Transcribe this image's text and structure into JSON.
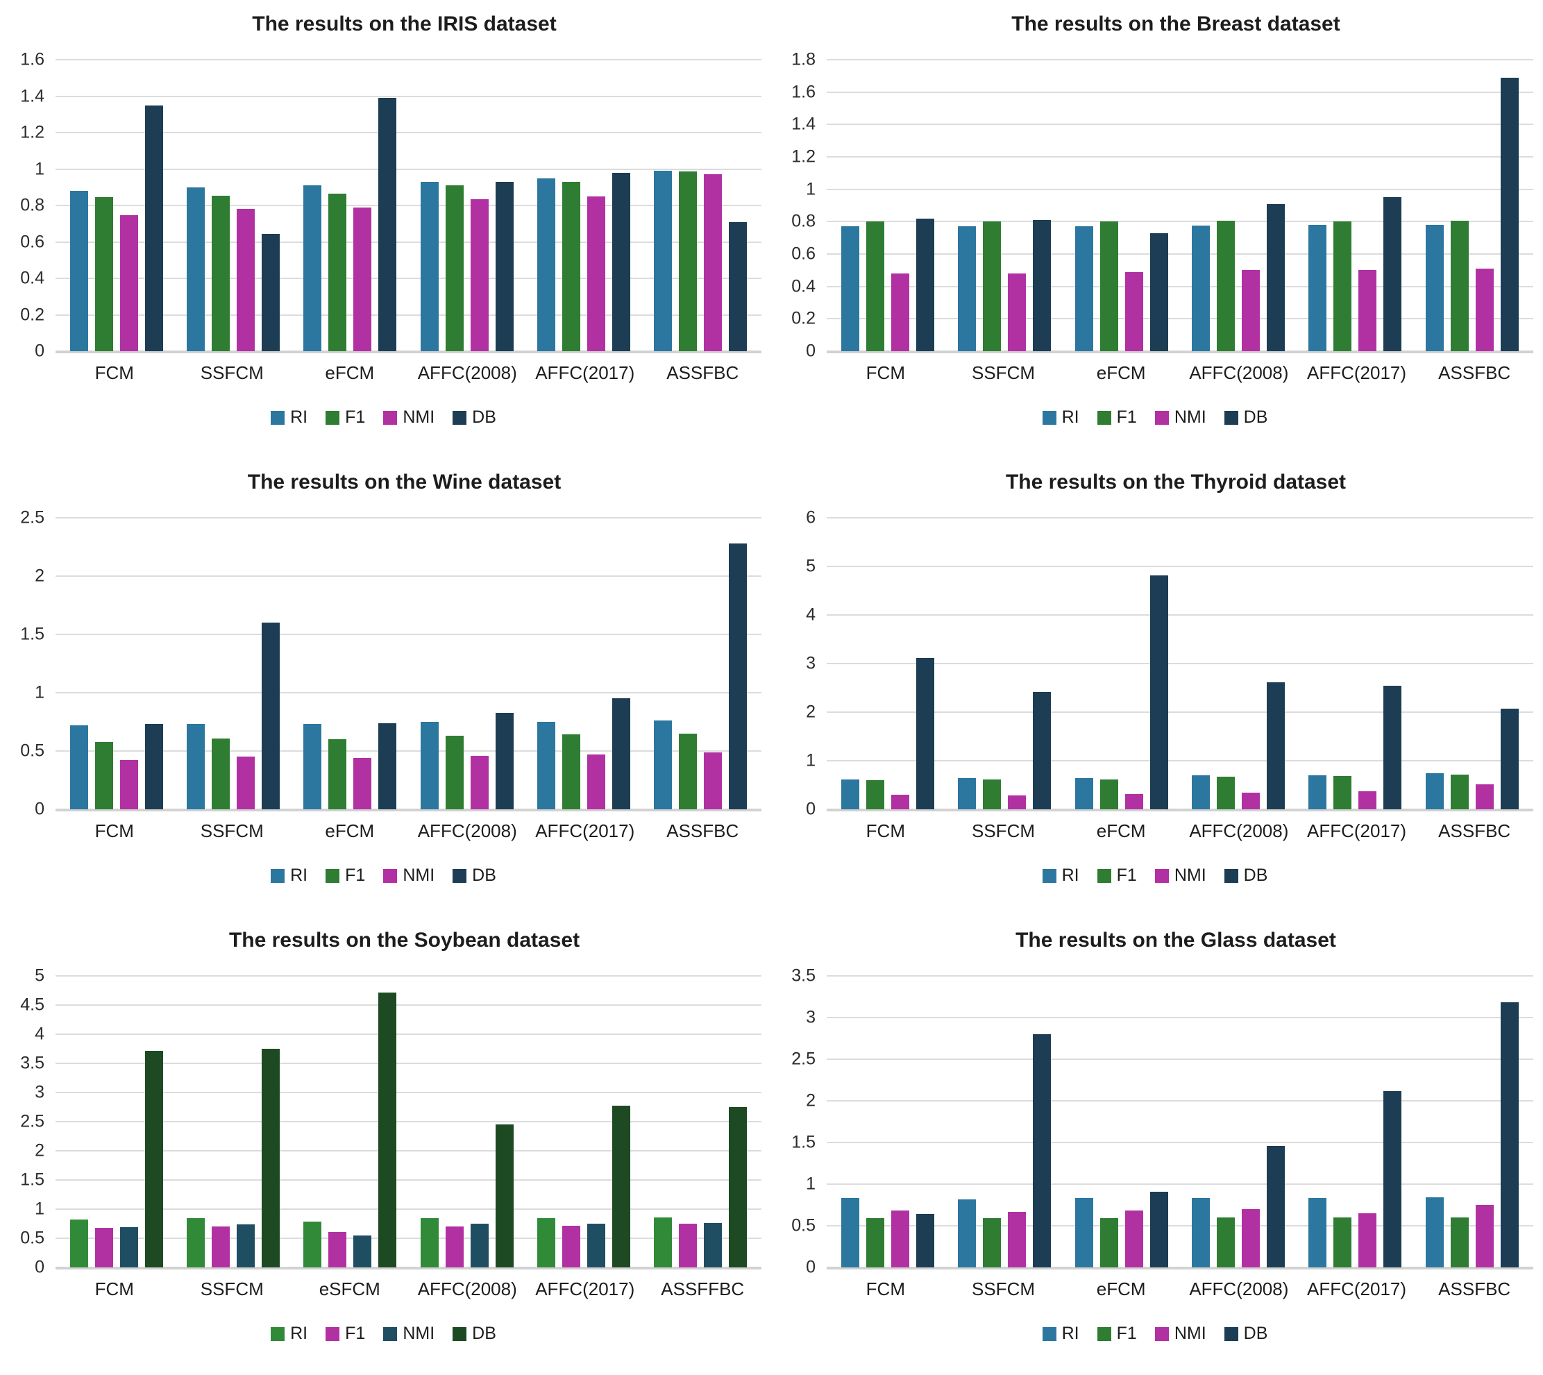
{
  "chart_data": [
    {
      "type": "bar",
      "title": "The results on the IRIS dataset",
      "categories": [
        "FCM",
        "SSFCM",
        "eFCM",
        "AFFC(2008)",
        "AFFC(2017)",
        "ASSFBC"
      ],
      "series": [
        {
          "name": "RI",
          "color": "#2B77A0",
          "values": [
            0.88,
            0.9,
            0.91,
            0.93,
            0.95,
            0.99
          ]
        },
        {
          "name": "F1",
          "color": "#2E7D32",
          "values": [
            0.845,
            0.855,
            0.865,
            0.91,
            0.93,
            0.985
          ]
        },
        {
          "name": "NMI",
          "color": "#B231A2",
          "values": [
            0.745,
            0.78,
            0.79,
            0.835,
            0.85,
            0.97
          ]
        },
        {
          "name": "DB",
          "color": "#1C3D54",
          "values": [
            1.35,
            0.645,
            1.39,
            0.93,
            0.98,
            0.71
          ]
        }
      ],
      "ylim": [
        0,
        1.6
      ],
      "yticks": [
        "0",
        "0.2",
        "0.4",
        "0.6",
        "0.8",
        "1",
        "1.2",
        "1.4",
        "1.6"
      ],
      "grid": true,
      "legend_position": "bottom"
    },
    {
      "type": "bar",
      "title": "The results on the Breast dataset",
      "categories": [
        "FCM",
        "SSFCM",
        "eFCM",
        "AFFC(2008)",
        "AFFC(2017)",
        "ASSFBC"
      ],
      "series": [
        {
          "name": "RI",
          "color": "#2B77A0",
          "values": [
            0.77,
            0.77,
            0.77,
            0.775,
            0.78,
            0.78
          ]
        },
        {
          "name": "F1",
          "color": "#2E7D32",
          "values": [
            0.8,
            0.8,
            0.8,
            0.805,
            0.8,
            0.805
          ]
        },
        {
          "name": "NMI",
          "color": "#B231A2",
          "values": [
            0.48,
            0.48,
            0.49,
            0.5,
            0.5,
            0.51
          ]
        },
        {
          "name": "DB",
          "color": "#1C3D54",
          "values": [
            0.82,
            0.81,
            0.73,
            0.91,
            0.95,
            1.69
          ]
        }
      ],
      "ylim": [
        0,
        1.8
      ],
      "yticks": [
        "0",
        "0.2",
        "0.4",
        "0.6",
        "0.8",
        "1",
        "1.2",
        "1.4",
        "1.6",
        "1.8"
      ],
      "grid": true,
      "legend_position": "bottom"
    },
    {
      "type": "bar",
      "title": "The results on the Wine dataset",
      "categories": [
        "FCM",
        "SSFCM",
        "eFCM",
        "AFFC(2008)",
        "AFFC(2017)",
        "ASSFBC"
      ],
      "series": [
        {
          "name": "RI",
          "color": "#2B77A0",
          "values": [
            0.72,
            0.73,
            0.73,
            0.75,
            0.75,
            0.76
          ]
        },
        {
          "name": "F1",
          "color": "#2E7D32",
          "values": [
            0.58,
            0.61,
            0.6,
            0.63,
            0.64,
            0.65
          ]
        },
        {
          "name": "NMI",
          "color": "#B231A2",
          "values": [
            0.42,
            0.45,
            0.44,
            0.46,
            0.47,
            0.49
          ]
        },
        {
          "name": "DB",
          "color": "#1C3D54",
          "values": [
            0.73,
            1.6,
            0.74,
            0.83,
            0.95,
            2.28
          ]
        }
      ],
      "ylim": [
        0,
        2.5
      ],
      "yticks": [
        "0",
        "0.5",
        "1",
        "1.5",
        "2",
        "2.5"
      ],
      "grid": true,
      "legend_position": "bottom"
    },
    {
      "type": "bar",
      "title": "The results on the Thyroid dataset",
      "categories": [
        "FCM",
        "SSFCM",
        "eFCM",
        "AFFC(2008)",
        "AFFC(2017)",
        "ASSFBC"
      ],
      "series": [
        {
          "name": "RI",
          "color": "#2B77A0",
          "values": [
            0.62,
            0.64,
            0.64,
            0.7,
            0.7,
            0.75
          ]
        },
        {
          "name": "F1",
          "color": "#2E7D32",
          "values": [
            0.6,
            0.62,
            0.62,
            0.67,
            0.68,
            0.72
          ]
        },
        {
          "name": "NMI",
          "color": "#B231A2",
          "values": [
            0.3,
            0.28,
            0.32,
            0.35,
            0.37,
            0.52
          ]
        },
        {
          "name": "DB",
          "color": "#1C3D54",
          "values": [
            3.12,
            2.42,
            4.82,
            2.62,
            2.55,
            2.07
          ]
        }
      ],
      "ylim": [
        0,
        6
      ],
      "yticks": [
        "0",
        "1",
        "2",
        "3",
        "4",
        "5",
        "6"
      ],
      "grid": true,
      "legend_position": "bottom"
    },
    {
      "type": "bar",
      "title": "The results on the Soybean dataset",
      "categories": [
        "FCM",
        "SSFCM",
        "eSFCM",
        "AFFC(2008)",
        "AFFC(2017)",
        "ASSFFBC"
      ],
      "series": [
        {
          "name": "RI",
          "color": "#318A38",
          "values": [
            0.82,
            0.84,
            0.78,
            0.84,
            0.84,
            0.86
          ]
        },
        {
          "name": "F1",
          "color": "#B231A2",
          "values": [
            0.68,
            0.7,
            0.61,
            0.7,
            0.71,
            0.75
          ]
        },
        {
          "name": "NMI",
          "color": "#1F4E63",
          "values": [
            0.69,
            0.74,
            0.55,
            0.75,
            0.75,
            0.76
          ]
        },
        {
          "name": "DB",
          "color": "#1D4A22",
          "values": [
            3.71,
            3.75,
            4.72,
            2.45,
            2.77,
            2.75
          ]
        }
      ],
      "ylim": [
        0,
        5
      ],
      "yticks": [
        "0",
        "0.5",
        "1",
        "1.5",
        "2",
        "2.5",
        "3",
        "3.5",
        "4",
        "4.5",
        "5"
      ],
      "grid": true,
      "legend_position": "bottom"
    },
    {
      "type": "bar",
      "title": "The results on the Glass dataset",
      "categories": [
        "FCM",
        "SSFCM",
        "eFCM",
        "AFFC(2008)",
        "AFFC(2017)",
        "ASSFBC"
      ],
      "series": [
        {
          "name": "RI",
          "color": "#2B77A0",
          "values": [
            0.83,
            0.82,
            0.83,
            0.83,
            0.83,
            0.84
          ]
        },
        {
          "name": "F1",
          "color": "#2E7D32",
          "values": [
            0.59,
            0.59,
            0.59,
            0.6,
            0.6,
            0.6
          ]
        },
        {
          "name": "NMI",
          "color": "#B231A2",
          "values": [
            0.68,
            0.67,
            0.68,
            0.7,
            0.65,
            0.75
          ]
        },
        {
          "name": "DB",
          "color": "#1C3D54",
          "values": [
            0.64,
            2.8,
            0.91,
            1.46,
            2.12,
            3.18
          ]
        }
      ],
      "ylim": [
        0,
        3.5
      ],
      "yticks": [
        "0",
        "0.5",
        "1",
        "1.5",
        "2",
        "2.5",
        "3",
        "3.5"
      ],
      "grid": true,
      "legend_position": "bottom"
    }
  ]
}
